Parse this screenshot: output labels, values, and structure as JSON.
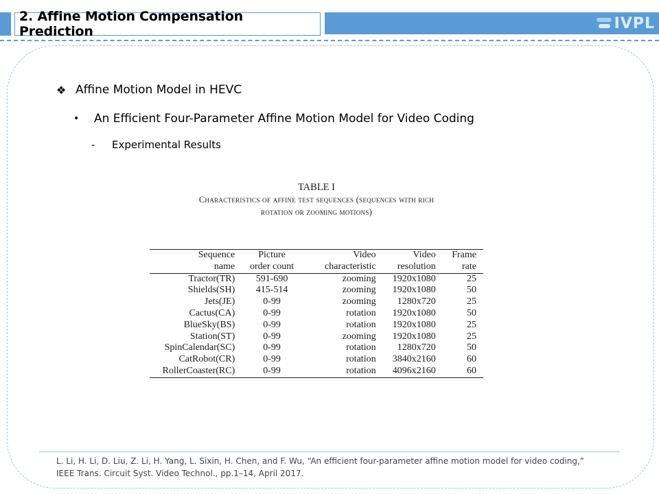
{
  "header": {
    "title": "2. Affine Motion Compensation Prediction",
    "logo_text": "IVPL",
    "accent_color": "#5b9bd5"
  },
  "bullets": [
    {
      "glyph": "❖",
      "text": "Affine Motion Model in HEVC"
    },
    {
      "glyph": "•",
      "text": "An Efficient Four-Parameter Affine Motion Model for Video Coding"
    },
    {
      "glyph": "-",
      "text": "Experimental Results"
    }
  ],
  "table": {
    "title": "TABLE I",
    "caption_line1": "Characteristics of affine test sequences (sequences with rich",
    "caption_line2": "rotation or zooming motions)",
    "headers": [
      [
        "Sequence",
        "name"
      ],
      [
        "Picture",
        "order count"
      ],
      [
        "Video",
        "characteristic"
      ],
      [
        "Video",
        "resolution"
      ],
      [
        "Frame",
        "rate"
      ]
    ],
    "rows": [
      [
        "Tractor(TR)",
        "591-690",
        "zooming",
        "1920x1080",
        "25"
      ],
      [
        "Shields(SH)",
        "415-514",
        "zooming",
        "1920x1080",
        "50"
      ],
      [
        "Jets(JE)",
        "0-99",
        "zooming",
        "1280x720",
        "25"
      ],
      [
        "Cactus(CA)",
        "0-99",
        "rotation",
        "1920x1080",
        "50"
      ],
      [
        "BlueSky(BS)",
        "0-99",
        "rotation",
        "1920x1080",
        "25"
      ],
      [
        "Station(ST)",
        "0-99",
        "zooming",
        "1920x1080",
        "25"
      ],
      [
        "SpinCalendar(SC)",
        "0-99",
        "rotation",
        "1280x720",
        "50"
      ],
      [
        "CatRobot(CR)",
        "0-99",
        "rotation",
        "3840x2160",
        "60"
      ],
      [
        "RollerCoaster(RC)",
        "0-99",
        "rotation",
        "4096x2160",
        "60"
      ]
    ]
  },
  "reference": {
    "line1": "L. Li, H. Li, D. Liu, Z. Li, H. Yang, L. Sixin, H. Chen, and F. Wu, “An efficient four-parameter affine motion model for video coding,”",
    "line2": "IEEE Trans. Circuit Syst. Video Technol., pp.1–14, April 2017."
  }
}
